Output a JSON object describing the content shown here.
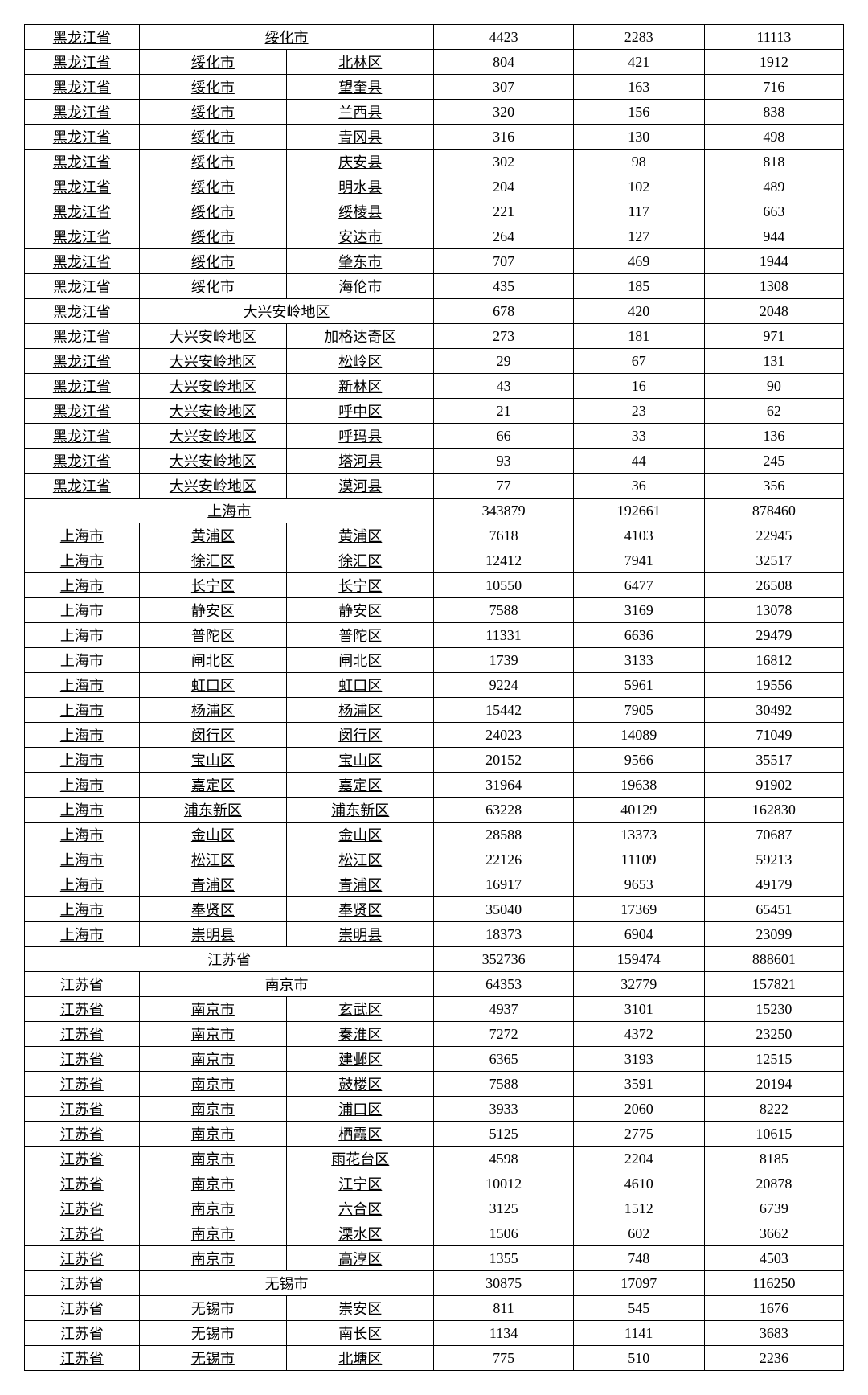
{
  "table": {
    "columns": [
      "province",
      "city",
      "district",
      "v1",
      "v2",
      "v3"
    ],
    "col_widths_pct": [
      14,
      18,
      18,
      17,
      16,
      17
    ],
    "font_family": "SimSun",
    "font_size_pt": 18,
    "border_color": "#000000",
    "background_color": "#ffffff",
    "text_color": "#000000",
    "linked_cols": [
      "province",
      "city",
      "district"
    ],
    "rows": [
      {
        "province": "黑龙江省",
        "city_span": "绥化市",
        "v1": "4423",
        "v2": "2283",
        "v3": "11113"
      },
      {
        "province": "黑龙江省",
        "city": "绥化市",
        "district": "北林区",
        "v1": "804",
        "v2": "421",
        "v3": "1912"
      },
      {
        "province": "黑龙江省",
        "city": "绥化市",
        "district": "望奎县",
        "v1": "307",
        "v2": "163",
        "v3": "716"
      },
      {
        "province": "黑龙江省",
        "city": "绥化市",
        "district": "兰西县",
        "v1": "320",
        "v2": "156",
        "v3": "838"
      },
      {
        "province": "黑龙江省",
        "city": "绥化市",
        "district": "青冈县",
        "v1": "316",
        "v2": "130",
        "v3": "498"
      },
      {
        "province": "黑龙江省",
        "city": "绥化市",
        "district": "庆安县",
        "v1": "302",
        "v2": "98",
        "v3": "818"
      },
      {
        "province": "黑龙江省",
        "city": "绥化市",
        "district": "明水县",
        "v1": "204",
        "v2": "102",
        "v3": "489"
      },
      {
        "province": "黑龙江省",
        "city": "绥化市",
        "district": "绥棱县",
        "v1": "221",
        "v2": "117",
        "v3": "663"
      },
      {
        "province": "黑龙江省",
        "city": "绥化市",
        "district": "安达市",
        "v1": "264",
        "v2": "127",
        "v3": "944"
      },
      {
        "province": "黑龙江省",
        "city": "绥化市",
        "district": "肇东市",
        "v1": "707",
        "v2": "469",
        "v3": "1944"
      },
      {
        "province": "黑龙江省",
        "city": "绥化市",
        "district": "海伦市",
        "v1": "435",
        "v2": "185",
        "v3": "1308"
      },
      {
        "province": "黑龙江省",
        "city_span": "大兴安岭地区",
        "v1": "678",
        "v2": "420",
        "v3": "2048"
      },
      {
        "province": "黑龙江省",
        "city": "大兴安岭地区",
        "district": "加格达奇区",
        "v1": "273",
        "v2": "181",
        "v3": "971"
      },
      {
        "province": "黑龙江省",
        "city": "大兴安岭地区",
        "district": "松岭区",
        "v1": "29",
        "v2": "67",
        "v3": "131"
      },
      {
        "province": "黑龙江省",
        "city": "大兴安岭地区",
        "district": "新林区",
        "v1": "43",
        "v2": "16",
        "v3": "90"
      },
      {
        "province": "黑龙江省",
        "city": "大兴安岭地区",
        "district": "呼中区",
        "v1": "21",
        "v2": "23",
        "v3": "62"
      },
      {
        "province": "黑龙江省",
        "city": "大兴安岭地区",
        "district": "呼玛县",
        "v1": "66",
        "v2": "33",
        "v3": "136"
      },
      {
        "province": "黑龙江省",
        "city": "大兴安岭地区",
        "district": "塔河县",
        "v1": "93",
        "v2": "44",
        "v3": "245"
      },
      {
        "province": "黑龙江省",
        "city": "大兴安岭地区",
        "district": "漠河县",
        "v1": "77",
        "v2": "36",
        "v3": "356"
      },
      {
        "prov_span": "上海市",
        "v1": "343879",
        "v2": "192661",
        "v3": "878460"
      },
      {
        "province": "上海市",
        "city": "黄浦区",
        "district": "黄浦区",
        "v1": "7618",
        "v2": "4103",
        "v3": "22945"
      },
      {
        "province": "上海市",
        "city": "徐汇区",
        "district": "徐汇区",
        "v1": "12412",
        "v2": "7941",
        "v3": "32517"
      },
      {
        "province": "上海市",
        "city": "长宁区",
        "district": "长宁区",
        "v1": "10550",
        "v2": "6477",
        "v3": "26508"
      },
      {
        "province": "上海市",
        "city": "静安区",
        "district": "静安区",
        "v1": "7588",
        "v2": "3169",
        "v3": "13078"
      },
      {
        "province": "上海市",
        "city": "普陀区",
        "district": "普陀区",
        "v1": "11331",
        "v2": "6636",
        "v3": "29479"
      },
      {
        "province": "上海市",
        "city": "闸北区",
        "district": "闸北区",
        "v1": "1739",
        "v2": "3133",
        "v3": "16812"
      },
      {
        "province": "上海市",
        "city": "虹口区",
        "district": "虹口区",
        "v1": "9224",
        "v2": "5961",
        "v3": "19556"
      },
      {
        "province": "上海市",
        "city": "杨浦区",
        "district": "杨浦区",
        "v1": "15442",
        "v2": "7905",
        "v3": "30492"
      },
      {
        "province": "上海市",
        "city": "闵行区",
        "district": "闵行区",
        "v1": "24023",
        "v2": "14089",
        "v3": "71049"
      },
      {
        "province": "上海市",
        "city": "宝山区",
        "district": "宝山区",
        "v1": "20152",
        "v2": "9566",
        "v3": "35517"
      },
      {
        "province": "上海市",
        "city": "嘉定区",
        "district": "嘉定区",
        "v1": "31964",
        "v2": "19638",
        "v3": "91902"
      },
      {
        "province": "上海市",
        "city": "浦东新区",
        "district": "浦东新区",
        "v1": "63228",
        "v2": "40129",
        "v3": "162830"
      },
      {
        "province": "上海市",
        "city": "金山区",
        "district": "金山区",
        "v1": "28588",
        "v2": "13373",
        "v3": "70687"
      },
      {
        "province": "上海市",
        "city": "松江区",
        "district": "松江区",
        "v1": "22126",
        "v2": "11109",
        "v3": "59213"
      },
      {
        "province": "上海市",
        "city": "青浦区",
        "district": "青浦区",
        "v1": "16917",
        "v2": "9653",
        "v3": "49179"
      },
      {
        "province": "上海市",
        "city": "奉贤区",
        "district": "奉贤区",
        "v1": "35040",
        "v2": "17369",
        "v3": "65451"
      },
      {
        "province": "上海市",
        "city": "崇明县",
        "district": "崇明县",
        "v1": "18373",
        "v2": "6904",
        "v3": "23099"
      },
      {
        "prov_span": "江苏省",
        "v1": "352736",
        "v2": "159474",
        "v3": "888601"
      },
      {
        "province": "江苏省",
        "city_span": "南京市",
        "v1": "64353",
        "v2": "32779",
        "v3": "157821"
      },
      {
        "province": "江苏省",
        "city": "南京市",
        "district": "玄武区",
        "v1": "4937",
        "v2": "3101",
        "v3": "15230"
      },
      {
        "province": "江苏省",
        "city": "南京市",
        "district": "秦淮区",
        "v1": "7272",
        "v2": "4372",
        "v3": "23250"
      },
      {
        "province": "江苏省",
        "city": "南京市",
        "district": "建邺区",
        "v1": "6365",
        "v2": "3193",
        "v3": "12515"
      },
      {
        "province": "江苏省",
        "city": "南京市",
        "district": "鼓楼区",
        "v1": "7588",
        "v2": "3591",
        "v3": "20194"
      },
      {
        "province": "江苏省",
        "city": "南京市",
        "district": "浦口区",
        "v1": "3933",
        "v2": "2060",
        "v3": "8222"
      },
      {
        "province": "江苏省",
        "city": "南京市",
        "district": "栖霞区",
        "v1": "5125",
        "v2": "2775",
        "v3": "10615"
      },
      {
        "province": "江苏省",
        "city": "南京市",
        "district": "雨花台区",
        "v1": "4598",
        "v2": "2204",
        "v3": "8185"
      },
      {
        "province": "江苏省",
        "city": "南京市",
        "district": "江宁区",
        "v1": "10012",
        "v2": "4610",
        "v3": "20878"
      },
      {
        "province": "江苏省",
        "city": "南京市",
        "district": "六合区",
        "v1": "3125",
        "v2": "1512",
        "v3": "6739"
      },
      {
        "province": "江苏省",
        "city": "南京市",
        "district": "溧水区",
        "v1": "1506",
        "v2": "602",
        "v3": "3662"
      },
      {
        "province": "江苏省",
        "city": "南京市",
        "district": "高淳区",
        "v1": "1355",
        "v2": "748",
        "v3": "4503"
      },
      {
        "province": "江苏省",
        "city_span": "无锡市",
        "v1": "30875",
        "v2": "17097",
        "v3": "116250"
      },
      {
        "province": "江苏省",
        "city": "无锡市",
        "district": "崇安区",
        "v1": "811",
        "v2": "545",
        "v3": "1676"
      },
      {
        "province": "江苏省",
        "city": "无锡市",
        "district": "南长区",
        "v1": "1134",
        "v2": "1141",
        "v3": "3683"
      },
      {
        "province": "江苏省",
        "city": "无锡市",
        "district": "北塘区",
        "v1": "775",
        "v2": "510",
        "v3": "2236"
      }
    ]
  }
}
